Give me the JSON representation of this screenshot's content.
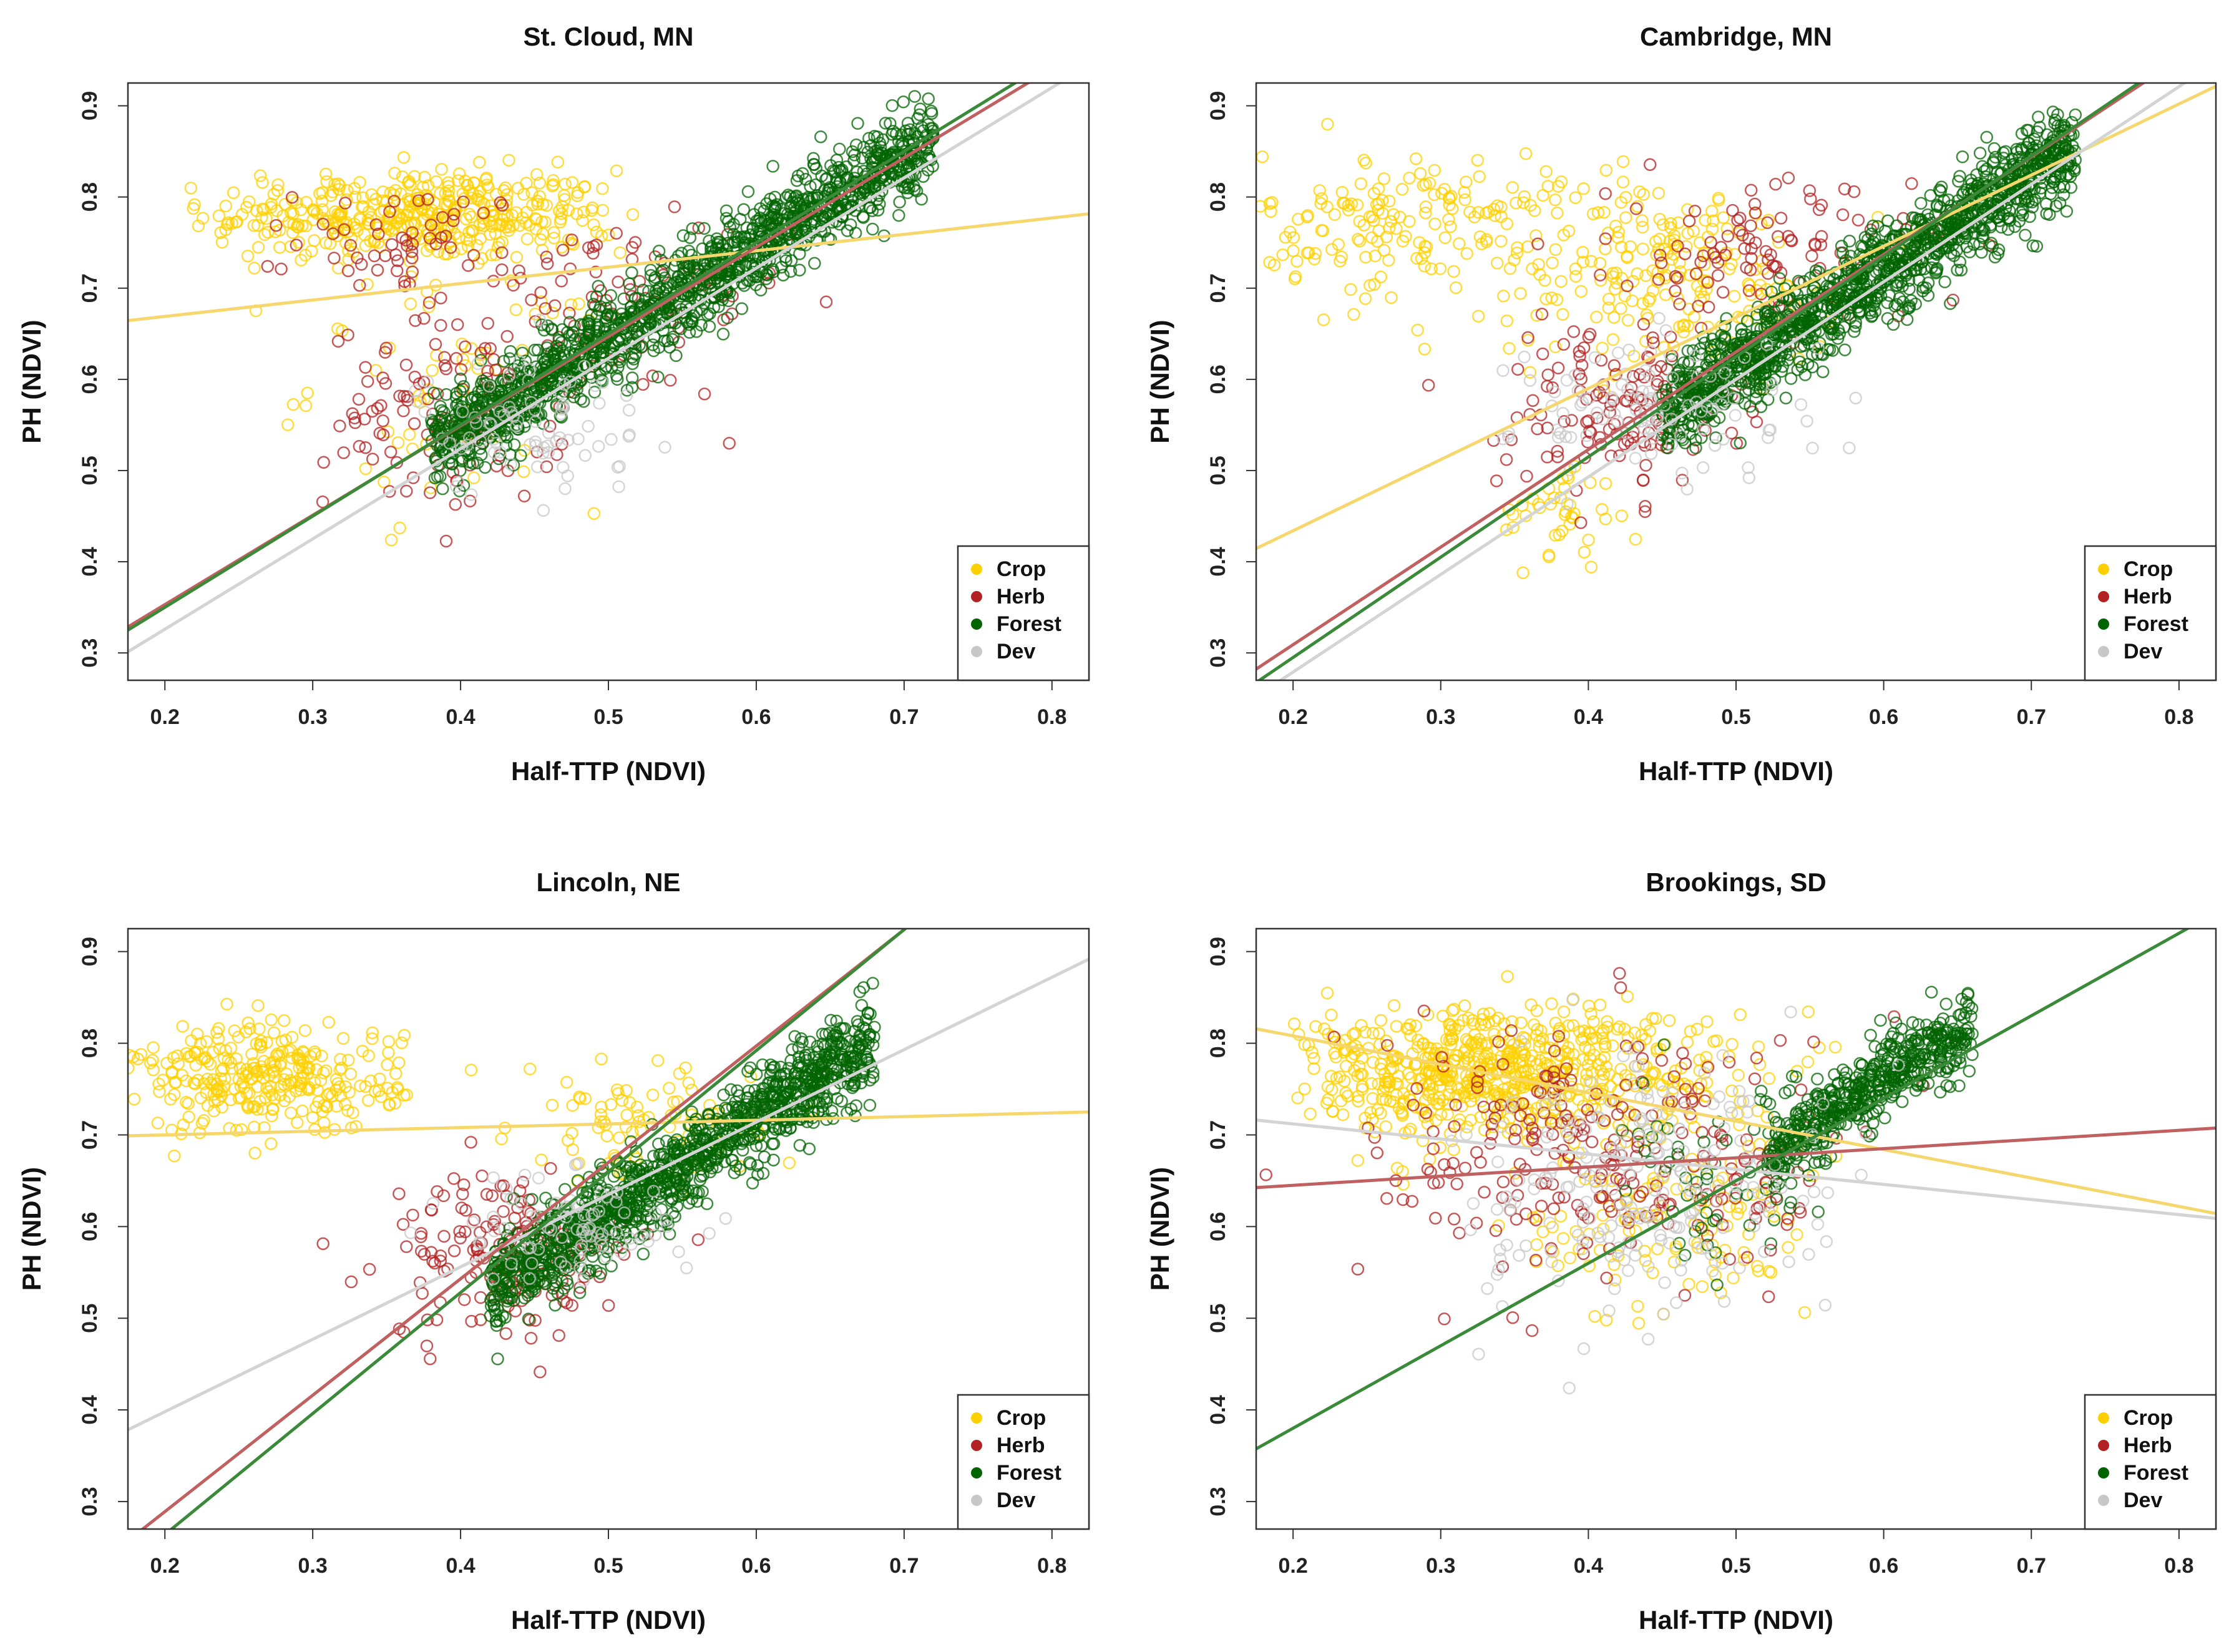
{
  "colors": {
    "Crop": "#FFD000",
    "Herb": "#B22222",
    "Forest": "#006400",
    "Dev": "#C8C8C8"
  },
  "line_colors": {
    "Crop": "#F5D76E",
    "Herb": "#C06060",
    "Forest": "#3A8A3A",
    "Dev": "#D4D4D4"
  },
  "chart_data": [
    {
      "type": "scatter",
      "title": "St. Cloud, MN",
      "xlabel": "Half-TTP (NDVI)",
      "ylabel": "PH (NDVI)",
      "xlim": [
        0.175,
        0.825
      ],
      "ylim": [
        0.27,
        0.925
      ],
      "xticks": [
        0.2,
        0.3,
        0.4,
        0.5,
        0.6,
        0.7,
        0.8
      ],
      "yticks": [
        0.3,
        0.4,
        0.5,
        0.6,
        0.7,
        0.8,
        0.9
      ],
      "legend": {
        "position": "bottom-right",
        "entries": [
          "Crop",
          "Herb",
          "Forest",
          "Dev"
        ]
      },
      "series": [
        {
          "name": "Crop",
          "clusters": [
            {
              "cx": 0.37,
              "cy": 0.78,
              "sx": 0.07,
              "sy": 0.025,
              "n": 420,
              "x_range": [
                0.21,
                0.52
              ]
            },
            {
              "cx": 0.4,
              "cy": 0.6,
              "sx": 0.05,
              "sy": 0.07,
              "n": 60
            }
          ],
          "fit": {
            "slope": 0.18,
            "intercept": 0.633
          }
        },
        {
          "name": "Herb",
          "clusters": [
            {
              "cx": 0.39,
              "cy": 0.56,
              "sx": 0.04,
              "sy": 0.05,
              "n": 110
            },
            {
              "cx": 0.37,
              "cy": 0.75,
              "sx": 0.04,
              "sy": 0.03,
              "n": 60
            },
            {
              "cx": 0.5,
              "cy": 0.68,
              "sx": 0.06,
              "sy": 0.05,
              "n": 80
            }
          ],
          "fit": {
            "slope": 0.98,
            "intercept": 0.157
          }
        },
        {
          "name": "Forest",
          "clusters": [
            {
              "band": true,
              "x_range": [
                0.38,
                0.72
              ],
              "slope": 1.0,
              "intercept": 0.145,
              "width": 0.025,
              "n": 1400
            }
          ],
          "fit": {
            "slope": 1.0,
            "intercept": 0.15
          }
        },
        {
          "name": "Dev",
          "clusters": [
            {
              "cx": 0.45,
              "cy": 0.55,
              "sx": 0.04,
              "sy": 0.04,
              "n": 80
            }
          ],
          "fit": {
            "slope": 0.99,
            "intercept": 0.128
          }
        }
      ]
    },
    {
      "type": "scatter",
      "title": "Cambridge, MN",
      "xlabel": "Half-TTP (NDVI)",
      "ylabel": "PH (NDVI)",
      "xlim": [
        0.175,
        0.825
      ],
      "ylim": [
        0.27,
        0.925
      ],
      "xticks": [
        0.2,
        0.3,
        0.4,
        0.5,
        0.6,
        0.7,
        0.8
      ],
      "yticks": [
        0.3,
        0.4,
        0.5,
        0.6,
        0.7,
        0.8,
        0.9
      ],
      "legend": {
        "position": "bottom-right",
        "entries": [
          "Crop",
          "Herb",
          "Forest",
          "Dev"
        ]
      },
      "series": [
        {
          "name": "Crop",
          "clusters": [
            {
              "cx": 0.28,
              "cy": 0.77,
              "sx": 0.05,
              "sy": 0.04,
              "n": 160
            },
            {
              "cx": 0.45,
              "cy": 0.72,
              "sx": 0.06,
              "sy": 0.05,
              "n": 200
            },
            {
              "cx": 0.38,
              "cy": 0.45,
              "sx": 0.02,
              "sy": 0.03,
              "n": 40
            }
          ],
          "fit": {
            "slope": 0.78,
            "intercept": 0.278
          }
        },
        {
          "name": "Herb",
          "clusters": [
            {
              "cx": 0.42,
              "cy": 0.57,
              "sx": 0.04,
              "sy": 0.05,
              "n": 130
            },
            {
              "cx": 0.52,
              "cy": 0.74,
              "sx": 0.05,
              "sy": 0.04,
              "n": 100
            }
          ],
          "fit": {
            "slope": 1.07,
            "intercept": 0.095
          }
        },
        {
          "name": "Forest",
          "clusters": [
            {
              "band": true,
              "x_range": [
                0.45,
                0.73
              ],
              "slope": 1.05,
              "intercept": 0.088,
              "width": 0.025,
              "n": 1300
            }
          ],
          "fit": {
            "slope": 1.1,
            "intercept": 0.075
          }
        },
        {
          "name": "Dev",
          "clusters": [
            {
              "cx": 0.45,
              "cy": 0.57,
              "sx": 0.05,
              "sy": 0.04,
              "n": 100
            }
          ],
          "fit": {
            "slope": 1.07,
            "intercept": 0.065
          }
        }
      ]
    },
    {
      "type": "scatter",
      "title": "Lincoln, NE",
      "xlabel": "Half-TTP (NDVI)",
      "ylabel": "PH (NDVI)",
      "xlim": [
        0.175,
        0.825
      ],
      "ylim": [
        0.27,
        0.925
      ],
      "xticks": [
        0.2,
        0.3,
        0.4,
        0.5,
        0.6,
        0.7,
        0.8
      ],
      "yticks": [
        0.3,
        0.4,
        0.5,
        0.6,
        0.7,
        0.8,
        0.9
      ],
      "legend": {
        "position": "bottom-right",
        "entries": [
          "Crop",
          "Herb",
          "Forest",
          "Dev"
        ]
      },
      "series": [
        {
          "name": "Crop",
          "clusters": [
            {
              "cx": 0.27,
              "cy": 0.76,
              "sx": 0.045,
              "sy": 0.03,
              "n": 300
            },
            {
              "cx": 0.52,
              "cy": 0.71,
              "sx": 0.04,
              "sy": 0.03,
              "n": 80
            }
          ],
          "fit": {
            "slope": 0.04,
            "intercept": 0.692
          }
        },
        {
          "name": "Herb",
          "clusters": [
            {
              "cx": 0.43,
              "cy": 0.57,
              "sx": 0.04,
              "sy": 0.045,
              "n": 160
            }
          ],
          "fit": {
            "slope": 1.27,
            "intercept": 0.035
          }
        },
        {
          "name": "Forest",
          "clusters": [
            {
              "band": true,
              "x_range": [
                0.42,
                0.68
              ],
              "slope": 1.05,
              "intercept": 0.09,
              "width": 0.025,
              "n": 1200
            }
          ],
          "fit": {
            "slope": 1.32,
            "intercept": 0.0
          }
        },
        {
          "name": "Dev",
          "clusters": [
            {
              "cx": 0.48,
              "cy": 0.6,
              "sx": 0.04,
              "sy": 0.03,
              "n": 80
            }
          ],
          "fit": {
            "slope": 0.79,
            "intercept": 0.24
          }
        }
      ]
    },
    {
      "type": "scatter",
      "title": "Brookings, SD",
      "xlabel": "Half-TTP (NDVI)",
      "ylabel": "PH (NDVI)",
      "xlim": [
        0.175,
        0.825
      ],
      "ylim": [
        0.27,
        0.925
      ],
      "xticks": [
        0.2,
        0.3,
        0.4,
        0.5,
        0.6,
        0.7,
        0.8
      ],
      "yticks": [
        0.3,
        0.4,
        0.5,
        0.6,
        0.7,
        0.8,
        0.9
      ],
      "legend": {
        "position": "bottom-right",
        "entries": [
          "Crop",
          "Herb",
          "Forest",
          "Dev"
        ]
      },
      "series": [
        {
          "name": "Crop",
          "clusters": [
            {
              "cx": 0.33,
              "cy": 0.77,
              "sx": 0.08,
              "sy": 0.035,
              "n": 700,
              "x_range": [
                0.2,
                0.58
              ]
            },
            {
              "cx": 0.45,
              "cy": 0.6,
              "sx": 0.05,
              "sy": 0.05,
              "n": 120
            }
          ],
          "fit": {
            "slope": -0.31,
            "intercept": 0.87
          }
        },
        {
          "name": "Herb",
          "clusters": [
            {
              "cx": 0.42,
              "cy": 0.68,
              "sx": 0.08,
              "sy": 0.07,
              "n": 260
            }
          ],
          "fit": {
            "slope": 0.1,
            "intercept": 0.625
          }
        },
        {
          "name": "Forest",
          "clusters": [
            {
              "band": true,
              "x_range": [
                0.52,
                0.66
              ],
              "slope": 1.0,
              "intercept": 0.16,
              "width": 0.02,
              "n": 500
            },
            {
              "cx": 0.5,
              "cy": 0.64,
              "sx": 0.04,
              "sy": 0.05,
              "n": 60
            }
          ],
          "fit": {
            "slope": 0.9,
            "intercept": 0.2
          }
        },
        {
          "name": "Dev",
          "clusters": [
            {
              "cx": 0.44,
              "cy": 0.64,
              "sx": 0.06,
              "sy": 0.07,
              "n": 220
            }
          ],
          "fit": {
            "slope": -0.165,
            "intercept": 0.745
          }
        }
      ]
    }
  ]
}
